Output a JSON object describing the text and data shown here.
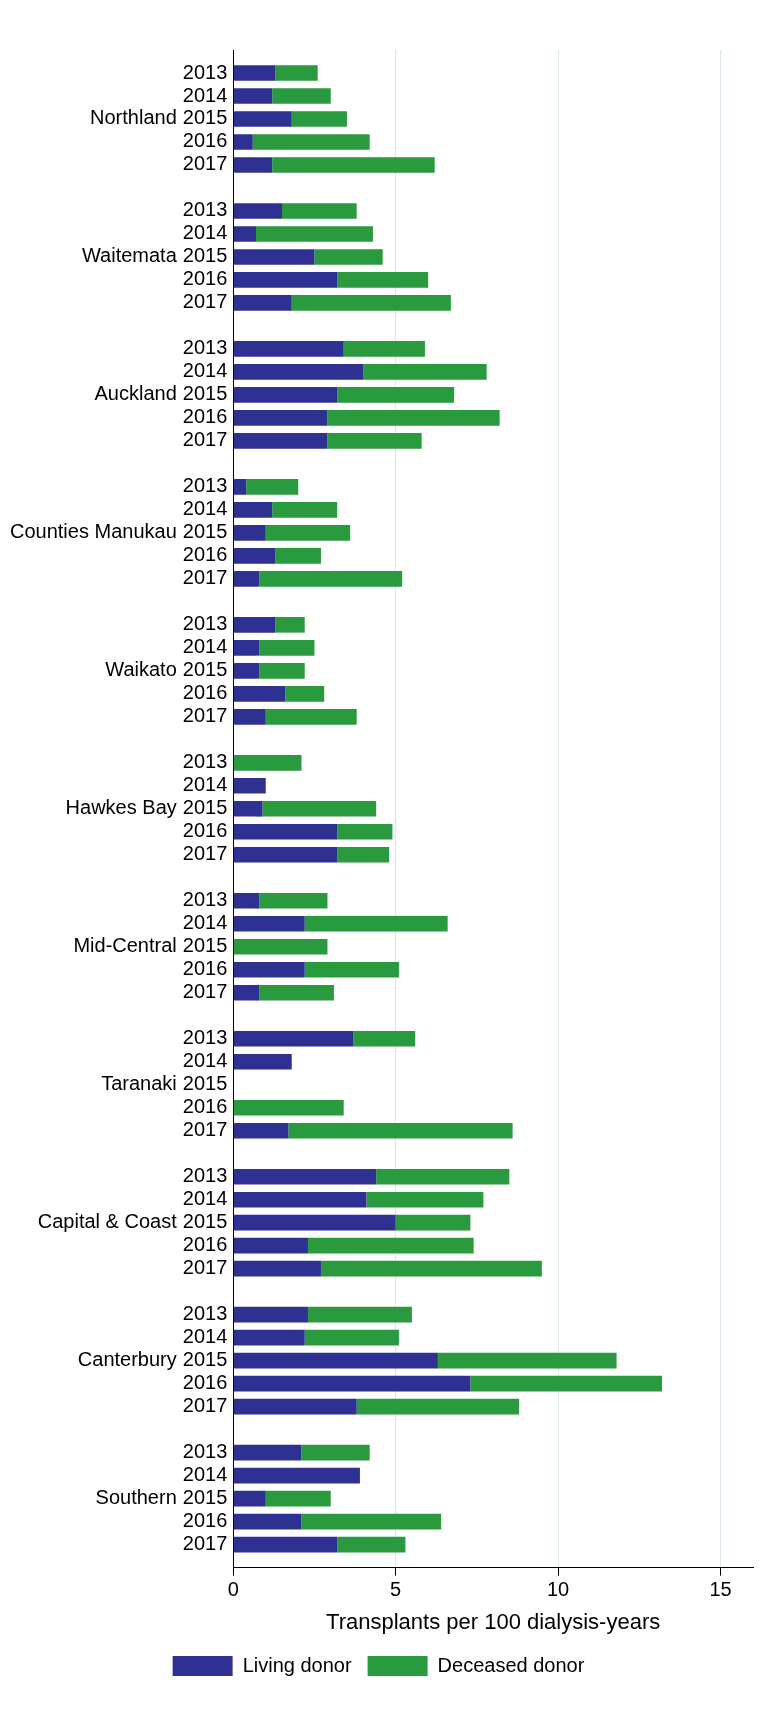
{
  "chart_data": {
    "type": "bar",
    "orientation": "horizontal",
    "stacked": true,
    "xlabel": "Transplants per 100 dialysis-years",
    "categories": [
      null,
      "2013",
      "2014",
      "2015",
      "2016",
      "2017",
      null,
      "2013",
      "2014",
      "2015",
      "2016",
      "2017",
      null,
      "2013",
      "2014",
      "2015",
      "2016",
      "2017",
      null,
      "2013",
      "2014",
      "2015",
      "2016",
      "2017",
      null,
      "2013",
      "2014",
      "2015",
      "2016",
      "2017",
      null,
      "2013",
      "2014",
      "2015",
      "2016",
      "2017",
      null,
      "2013",
      "2014",
      "2015",
      "2016",
      "2017",
      null,
      "2013",
      "2014",
      "2015",
      "2016",
      "2017",
      null,
      "2013",
      "2014",
      "2015",
      "2016",
      "2017",
      null,
      "2013",
      "2014",
      "2015",
      "2016",
      "2017",
      null,
      "2013",
      "2014",
      "2015",
      "2016",
      "2017",
      null
    ],
    "series": [
      {
        "name": "Living donor",
        "color": "#2e3192",
        "values": [
          null,
          1.3,
          1.2,
          1.8,
          0.6,
          1.2,
          null,
          1.5,
          0.7,
          2.5,
          3.2,
          1.8,
          null,
          3.4,
          4.0,
          3.2,
          2.9,
          2.9,
          null,
          0.4,
          1.2,
          1.0,
          1.3,
          0.8,
          null,
          1.3,
          0.8,
          0.8,
          1.6,
          1.0,
          null,
          0,
          1.0,
          0.9,
          3.2,
          3.2,
          null,
          0.8,
          2.2,
          0,
          2.2,
          0.8,
          null,
          3.7,
          1.8,
          0,
          0,
          1.7,
          null,
          4.4,
          4.1,
          5.0,
          2.3,
          2.7,
          null,
          2.3,
          2.2,
          6.3,
          7.3,
          3.8,
          null,
          2.1,
          3.9,
          1.0,
          2.1,
          3.2,
          null
        ]
      },
      {
        "name": "Deceased donor",
        "color": "#2a9a3e",
        "values": [
          null,
          1.3,
          1.8,
          1.7,
          3.6,
          5.0,
          null,
          2.3,
          3.6,
          2.1,
          2.8,
          4.9,
          null,
          2.5,
          3.8,
          3.6,
          5.3,
          2.9,
          null,
          1.6,
          2.0,
          2.6,
          1.4,
          4.4,
          null,
          0.9,
          1.7,
          1.4,
          1.2,
          2.8,
          null,
          2.1,
          0,
          3.5,
          1.7,
          1.6,
          null,
          2.1,
          4.4,
          2.9,
          2.9,
          2.3,
          null,
          1.9,
          0,
          0,
          3.4,
          6.9,
          null,
          4.1,
          3.6,
          2.3,
          5.1,
          6.8,
          null,
          3.2,
          2.9,
          5.5,
          5.9,
          5.0,
          null,
          2.1,
          0,
          2.0,
          4.3,
          2.1,
          null
        ]
      }
    ],
    "annotations": [
      "Northland",
      "Waitemata",
      "Auckland",
      "Counties Manukau",
      "Waikato",
      "Hawkes Bay",
      "Mid-Central",
      "Taranaki",
      "Capital & Coast",
      "Canterbury",
      "Southern"
    ],
    "xlim": [
      0,
      16
    ],
    "xticks": [
      0,
      5,
      10,
      15
    ],
    "grid": "x",
    "legend": "bottom"
  }
}
